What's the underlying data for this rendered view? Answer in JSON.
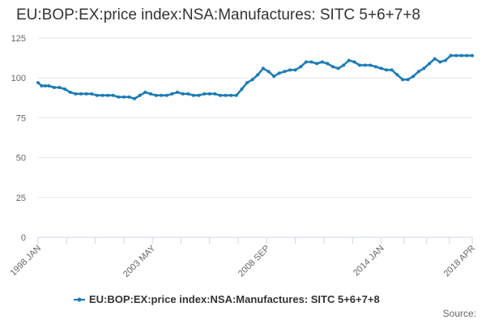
{
  "source_label": "Source:",
  "colors": {
    "series": "#1a7ab8",
    "grid": "#e6e6e6",
    "axis": "#ccd6eb"
  },
  "chart_data": {
    "type": "line",
    "title": "EU:BOP:EX:price index:NSA:Manufactures: SITC 5+6+7+8",
    "xlabel": "",
    "ylabel": "",
    "ylim": [
      0,
      125
    ],
    "yticks": [
      0,
      25,
      50,
      75,
      100,
      125
    ],
    "xlim": [
      "1998-01",
      "2018-04"
    ],
    "xticks": [
      "1998 JAN",
      "2003 MAY",
      "2008 SEP",
      "2014 JAN",
      "2018 APR"
    ],
    "grid": true,
    "legend_position": "bottom-center",
    "series": [
      {
        "name": "EU:BOP:EX:price index:NSA:Manufactures: SITC 5+6+7+8",
        "x": [
          "1998-01",
          "1998-03",
          "1998-05",
          "1998-07",
          "1998-10",
          "1999-01",
          "1999-04",
          "1999-07",
          "1999-10",
          "2000-01",
          "2000-04",
          "2000-07",
          "2000-10",
          "2001-01",
          "2001-04",
          "2001-07",
          "2001-10",
          "2002-01",
          "2002-04",
          "2002-07",
          "2002-10",
          "2003-01",
          "2003-04",
          "2003-07",
          "2003-10",
          "2004-01",
          "2004-04",
          "2004-07",
          "2004-10",
          "2005-01",
          "2005-04",
          "2005-07",
          "2005-10",
          "2006-01",
          "2006-04",
          "2006-07",
          "2006-10",
          "2007-01",
          "2007-04",
          "2007-07",
          "2007-10",
          "2008-01",
          "2008-04",
          "2008-07",
          "2008-10",
          "2009-01",
          "2009-04",
          "2009-07",
          "2009-10",
          "2010-01",
          "2010-04",
          "2010-07",
          "2010-10",
          "2011-01",
          "2011-04",
          "2011-07",
          "2011-10",
          "2012-01",
          "2012-04",
          "2012-07",
          "2012-10",
          "2013-01",
          "2013-04",
          "2013-07",
          "2013-10",
          "2014-01",
          "2014-04",
          "2014-07",
          "2014-10",
          "2015-01",
          "2015-04",
          "2015-07",
          "2015-10",
          "2016-01",
          "2016-04",
          "2016-07",
          "2016-10",
          "2017-01",
          "2017-04",
          "2017-07",
          "2017-10",
          "2018-01",
          "2018-04"
        ],
        "values": [
          97,
          95,
          95,
          95,
          94,
          94,
          93,
          91,
          90,
          90,
          90,
          90,
          89,
          89,
          89,
          89,
          88,
          88,
          88,
          87,
          89,
          91,
          90,
          89,
          89,
          89,
          90,
          91,
          90,
          90,
          89,
          89,
          90,
          90,
          90,
          89,
          89,
          89,
          89,
          93,
          97,
          99,
          102,
          106,
          104,
          101,
          103,
          104,
          105,
          105,
          107,
          110,
          110,
          109,
          110,
          109,
          107,
          106,
          108,
          111,
          110,
          108,
          108,
          108,
          107,
          106,
          105,
          105,
          102,
          99,
          99,
          101,
          104,
          106,
          109,
          112,
          110,
          111,
          114,
          114,
          114,
          114,
          114
        ]
      }
    ]
  }
}
